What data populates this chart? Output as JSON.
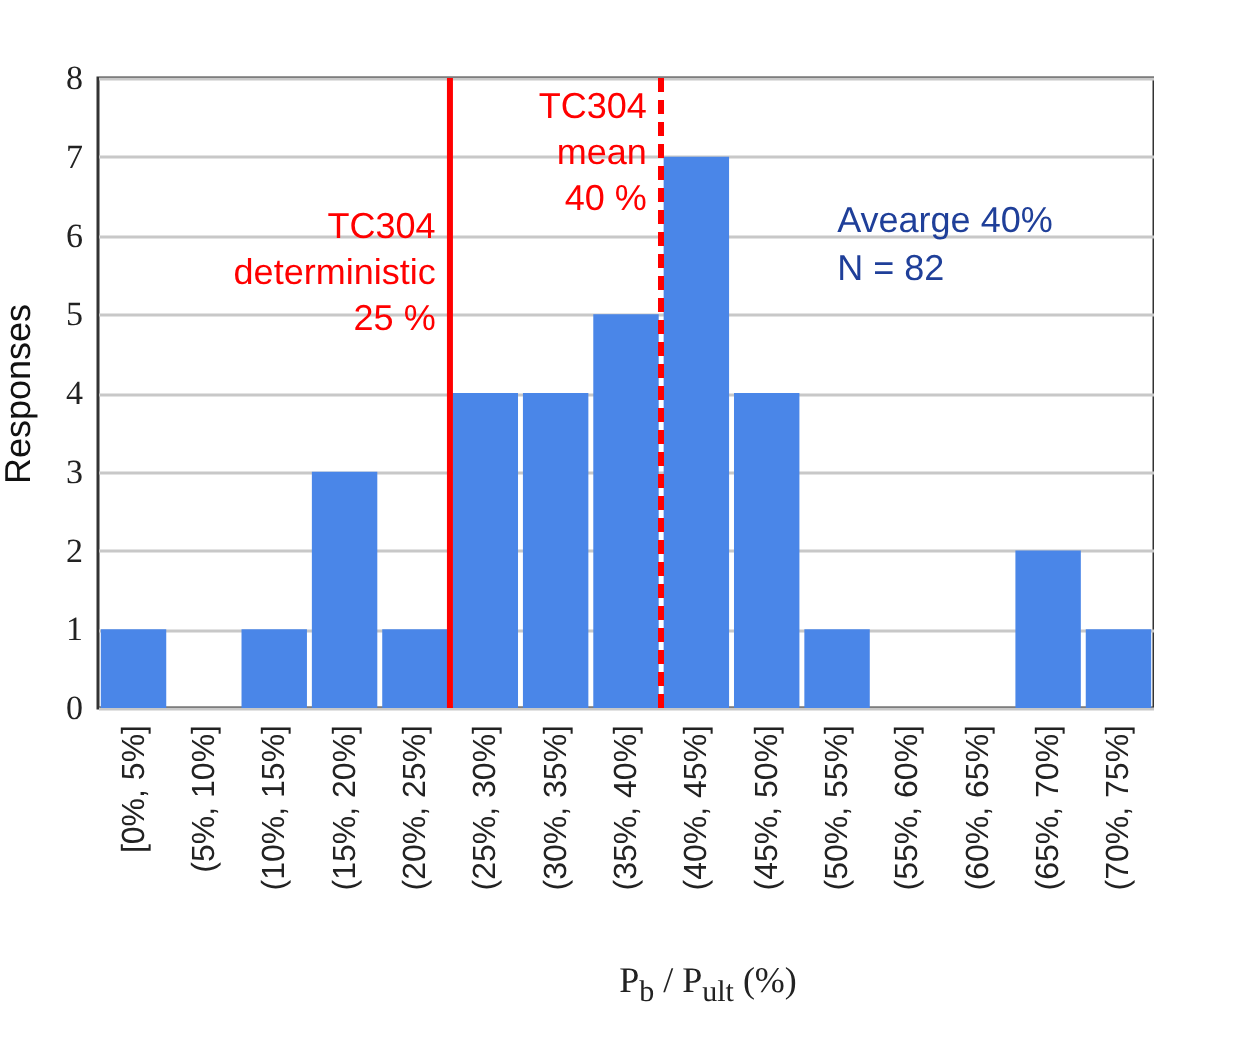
{
  "chart_data": {
    "type": "bar",
    "xlabel": "P$_{b}$ / P$_{ult}$ (%)",
    "ylabel": "Responses",
    "categories": [
      "[0%, 5%]",
      "(5%, 10%]",
      "(10%, 15%]",
      "(15%, 20%]",
      "(20%, 25%]",
      "(25%, 30%]",
      "(30%, 35%]",
      "(35%, 40%]",
      "(40%, 45%]",
      "(45%, 50%]",
      "(50%, 55%]",
      "(55%, 60%]",
      "(60%, 65%]",
      "(65%, 70%]",
      "(70%, 75%]"
    ],
    "values": [
      1,
      0,
      1,
      3,
      1,
      4,
      4,
      5,
      7,
      4,
      1,
      0,
      0,
      2,
      1
    ],
    "color": "#4a86e8",
    "ylim": [
      0,
      8
    ],
    "yticks": [
      0,
      1,
      2,
      3,
      4,
      5,
      6,
      7,
      8
    ],
    "grid": "y",
    "ref_lines": [
      {
        "axis": "x",
        "value": "(20%, 25%]",
        "label": "TC304\ndeterministic\n25 %",
        "color": "#ff0000",
        "line_style": "solid"
      },
      {
        "axis": "x",
        "value": "(35%, 40%]",
        "label": "TC304\nmean\n40 %",
        "color": "#ff0000",
        "line_style": "dashed"
      }
    ],
    "annotations": [
      "Avearge 40%\nN = 82"
    ]
  }
}
